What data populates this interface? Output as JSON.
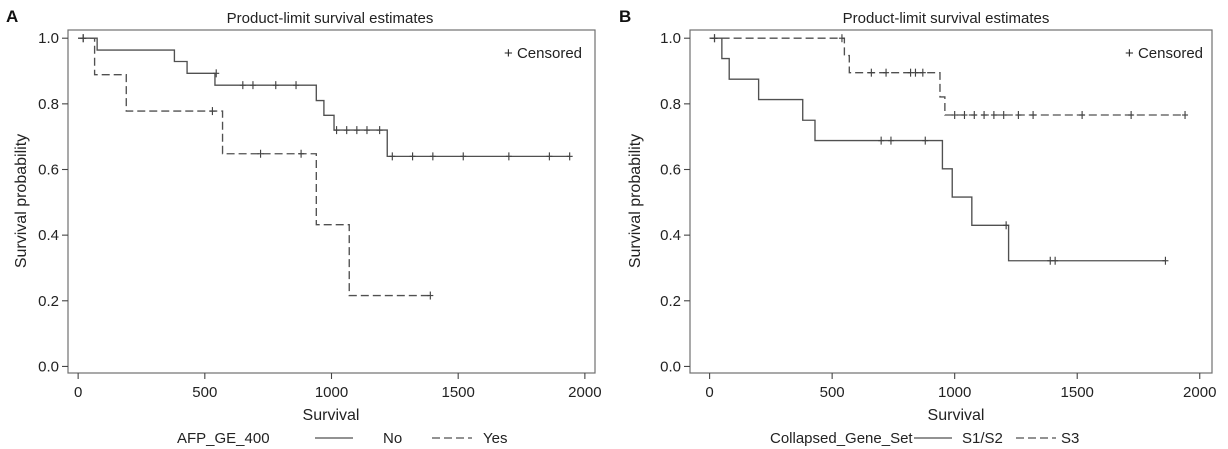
{
  "chart_data": [
    {
      "panel": "A",
      "type": "line",
      "title": "Product-limit survival estimates",
      "xlabel": "Survival",
      "ylabel": "Survival probability",
      "xlim": [
        0,
        2000
      ],
      "ylim": [
        0,
        1.0
      ],
      "xticks": [
        0,
        500,
        1000,
        1500,
        2000
      ],
      "yticks": [
        0.0,
        0.2,
        0.4,
        0.6,
        0.8,
        1.0
      ],
      "grid": false,
      "censored_label": "+ Censored",
      "legend": {
        "title": "AFP_GE_400",
        "placement": "bottom",
        "items": [
          {
            "label": "No",
            "style": "solid"
          },
          {
            "label": "Yes",
            "style": "dashed"
          }
        ]
      },
      "series": [
        {
          "name": "No",
          "style": "solid",
          "x": [
            0,
            75,
            380,
            430,
            540,
            940,
            970,
            1010,
            1220,
            1940
          ],
          "y": [
            1.0,
            0.964,
            0.929,
            0.893,
            0.857,
            0.81,
            0.765,
            0.72,
            0.64,
            0.64
          ],
          "censored": [
            {
              "x": 20,
              "y": 1.0
            },
            {
              "x": 545,
              "y": 0.893
            },
            {
              "x": 650,
              "y": 0.857
            },
            {
              "x": 690,
              "y": 0.857
            },
            {
              "x": 780,
              "y": 0.857
            },
            {
              "x": 860,
              "y": 0.857
            },
            {
              "x": 1020,
              "y": 0.72
            },
            {
              "x": 1060,
              "y": 0.72
            },
            {
              "x": 1100,
              "y": 0.72
            },
            {
              "x": 1140,
              "y": 0.72
            },
            {
              "x": 1190,
              "y": 0.72
            },
            {
              "x": 1240,
              "y": 0.64
            },
            {
              "x": 1320,
              "y": 0.64
            },
            {
              "x": 1400,
              "y": 0.64
            },
            {
              "x": 1520,
              "y": 0.64
            },
            {
              "x": 1700,
              "y": 0.64
            },
            {
              "x": 1860,
              "y": 0.64
            },
            {
              "x": 1940,
              "y": 0.64
            }
          ]
        },
        {
          "name": "Yes",
          "style": "dashed",
          "x": [
            0,
            65,
            190,
            530,
            570,
            940,
            1070,
            1400
          ],
          "y": [
            1.0,
            0.889,
            0.778,
            0.778,
            0.648,
            0.432,
            0.216,
            0.216
          ],
          "censored": [
            {
              "x": 20,
              "y": 1.0
            },
            {
              "x": 530,
              "y": 0.778
            },
            {
              "x": 720,
              "y": 0.648
            },
            {
              "x": 880,
              "y": 0.648
            },
            {
              "x": 1390,
              "y": 0.216
            }
          ]
        }
      ]
    },
    {
      "panel": "B",
      "type": "line",
      "title": "Product-limit survival estimates",
      "xlabel": "Survival",
      "ylabel": "Survival probability",
      "xlim": [
        0,
        2000
      ],
      "ylim": [
        0,
        1.0
      ],
      "xticks": [
        0,
        500,
        1000,
        1500,
        2000
      ],
      "yticks": [
        0.0,
        0.2,
        0.4,
        0.6,
        0.8,
        1.0
      ],
      "grid": false,
      "censored_label": "+ Censored",
      "legend": {
        "title": "Collapsed_Gene_Set",
        "placement": "bottom",
        "items": [
          {
            "label": "S1/S2",
            "style": "solid"
          },
          {
            "label": "S3",
            "style": "dashed"
          }
        ]
      },
      "series": [
        {
          "name": "S1/S2",
          "style": "solid",
          "x": [
            0,
            50,
            80,
            200,
            380,
            430,
            950,
            990,
            1070,
            1220,
            1860
          ],
          "y": [
            1.0,
            0.938,
            0.875,
            0.813,
            0.75,
            0.688,
            0.602,
            0.516,
            0.43,
            0.322,
            0.322
          ],
          "censored": [
            {
              "x": 20,
              "y": 1.0
            },
            {
              "x": 700,
              "y": 0.688
            },
            {
              "x": 740,
              "y": 0.688
            },
            {
              "x": 880,
              "y": 0.688
            },
            {
              "x": 1210,
              "y": 0.43
            },
            {
              "x": 1390,
              "y": 0.322
            },
            {
              "x": 1410,
              "y": 0.322
            },
            {
              "x": 1860,
              "y": 0.322
            }
          ]
        },
        {
          "name": "S3",
          "style": "dashed",
          "x": [
            0,
            550,
            570,
            920,
            940,
            960,
            1940
          ],
          "y": [
            1.0,
            0.947,
            0.895,
            0.895,
            0.821,
            0.766,
            0.766
          ],
          "censored": [
            {
              "x": 20,
              "y": 1.0
            },
            {
              "x": 540,
              "y": 1.0
            },
            {
              "x": 660,
              "y": 0.895
            },
            {
              "x": 720,
              "y": 0.895
            },
            {
              "x": 820,
              "y": 0.895
            },
            {
              "x": 840,
              "y": 0.895
            },
            {
              "x": 870,
              "y": 0.895
            },
            {
              "x": 1000,
              "y": 0.766
            },
            {
              "x": 1040,
              "y": 0.766
            },
            {
              "x": 1080,
              "y": 0.766
            },
            {
              "x": 1120,
              "y": 0.766
            },
            {
              "x": 1160,
              "y": 0.766
            },
            {
              "x": 1200,
              "y": 0.766
            },
            {
              "x": 1260,
              "y": 0.766
            },
            {
              "x": 1320,
              "y": 0.766
            },
            {
              "x": 1520,
              "y": 0.766
            },
            {
              "x": 1720,
              "y": 0.766
            },
            {
              "x": 1940,
              "y": 0.766
            }
          ]
        }
      ]
    }
  ]
}
